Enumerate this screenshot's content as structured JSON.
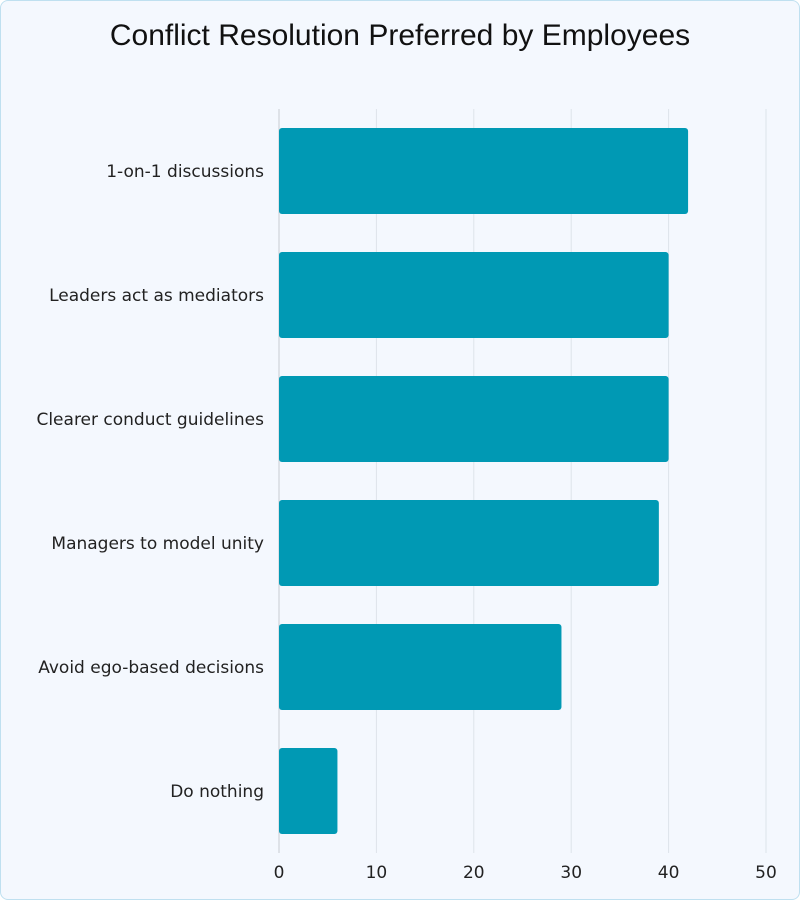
{
  "chart_data": {
    "type": "bar",
    "orientation": "horizontal",
    "title": "Conflict Resolution Preferred by Employees",
    "categories": [
      "1-on-1 discussions",
      "Leaders act as mediators",
      "Clearer conduct guidelines",
      "Managers to model unity",
      "Avoid ego-based decisions",
      "Do nothing"
    ],
    "values": [
      42,
      40,
      40,
      39,
      29,
      6
    ],
    "xlim": [
      0,
      50
    ],
    "xticks": [
      "0",
      "10",
      "20",
      "30",
      "40",
      "50"
    ],
    "grid": true,
    "bar_color": "#0099b4",
    "xlabel": "",
    "ylabel": ""
  }
}
